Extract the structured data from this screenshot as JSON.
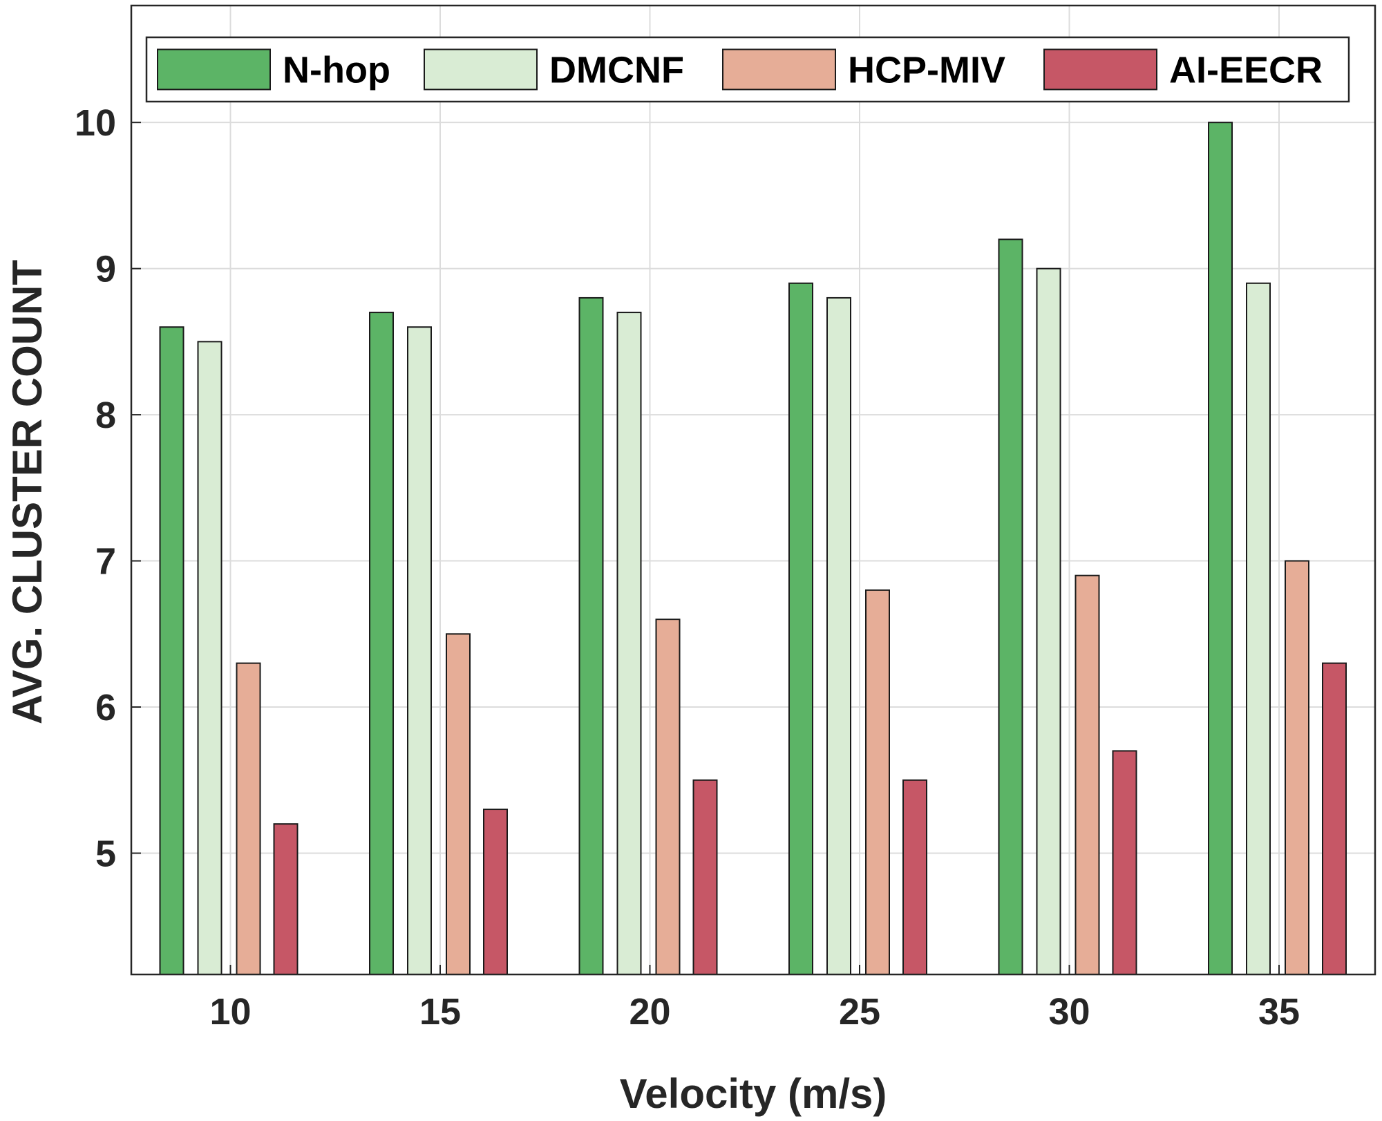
{
  "chart_data": {
    "type": "bar",
    "title": "",
    "xlabel": "Velocity (m/s)",
    "ylabel": "AVG. CLUSTER COUNT",
    "categories": [
      "10",
      "15",
      "20",
      "25",
      "30",
      "35"
    ],
    "yticks": [
      "5",
      "6",
      "7",
      "8",
      "9",
      "10"
    ],
    "ylim": [
      4.17,
      10.8
    ],
    "grid": true,
    "legend_position": "top",
    "series": [
      {
        "name": "N-hop",
        "color": "#5cb466",
        "values": [
          8.6,
          8.7,
          8.8,
          8.9,
          9.2,
          10.0
        ]
      },
      {
        "name": "DMCNF",
        "color": "#d9ecd4",
        "values": [
          8.5,
          8.6,
          8.7,
          8.8,
          9.0,
          8.9
        ]
      },
      {
        "name": "HCP-MIV",
        "color": "#e6ad97",
        "values": [
          6.3,
          6.5,
          6.6,
          6.8,
          6.9,
          7.0
        ]
      },
      {
        "name": "AI-EECR",
        "color": "#c65766",
        "values": [
          5.2,
          5.3,
          5.5,
          5.5,
          5.7,
          6.3
        ]
      }
    ]
  }
}
